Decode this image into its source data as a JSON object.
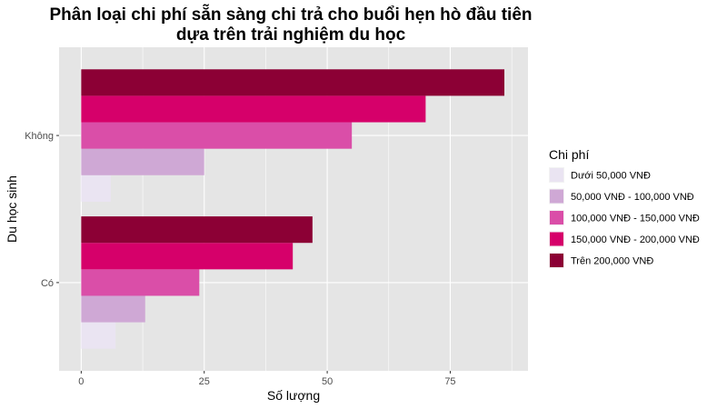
{
  "chart_data": {
    "type": "bar",
    "orientation": "horizontal",
    "title": [
      "Phân loại chi phí sẵn sàng chi trả cho buổi hẹn hò đầu tiên",
      "dựa trên trải nghiệm du học"
    ],
    "xlabel": "Số lượng",
    "ylabel": "Du học sinh",
    "categories": [
      "Không",
      "Có"
    ],
    "xlim": [
      -4.5,
      90.8
    ],
    "xticks": [
      0,
      25,
      50,
      75
    ],
    "grid": true,
    "legend": {
      "title": "Chi phí",
      "position": "right"
    },
    "series": [
      {
        "name": "Dưới 50,000 VNĐ",
        "color": "#EAE4F2",
        "values": [
          6,
          7
        ]
      },
      {
        "name": "50,000 VNĐ - 100,000 VNĐ",
        "color": "#CFA8D5",
        "values": [
          25,
          13
        ]
      },
      {
        "name": "100,000 VNĐ - 150,000 VNĐ",
        "color": "#DA4EA8",
        "values": [
          55,
          24
        ]
      },
      {
        "name": "150,000 VNĐ - 200,000 VNĐ",
        "color": "#D6006A",
        "values": [
          70,
          43
        ]
      },
      {
        "name": "Trên 200,000 VNĐ",
        "color": "#8C0035",
        "values": [
          86,
          47
        ]
      }
    ]
  }
}
